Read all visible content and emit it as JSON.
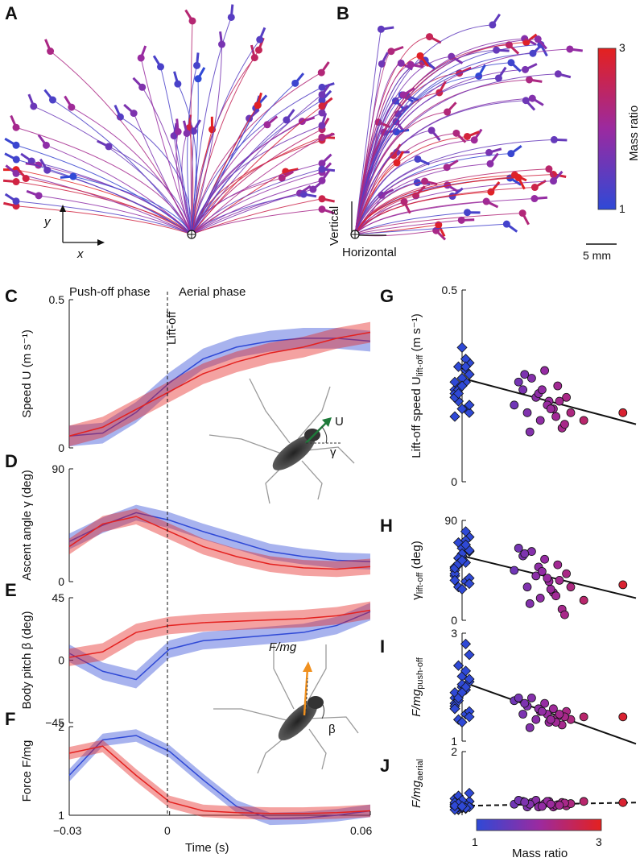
{
  "panels": {
    "A": "A",
    "B": "B",
    "C": "C",
    "D": "D",
    "E": "E",
    "F": "F",
    "G": "G",
    "H": "H",
    "I": "I",
    "J": "J"
  },
  "colorbar": {
    "label": "Mass ratio",
    "top": "3",
    "bottom": "1"
  },
  "colors": {
    "light": "#2f49d6",
    "heavy": "#e4211f",
    "mid": "#b01e6a"
  },
  "trajectory_top": {
    "axis_x": "x",
    "axis_y": "y"
  },
  "trajectory_side": {
    "axis_x": "Horizontal",
    "axis_y": "Vertical",
    "scalebar": "5 mm"
  },
  "time_series": {
    "phase_push": "Push-off phase",
    "phase_aerial": "Aerial phase",
    "liftoff": "Lift-off",
    "xlabel": "Time (s)",
    "xticks": [
      "−0.03",
      "0",
      "0.06"
    ],
    "inset1_U": "U",
    "inset1_gamma": "γ",
    "inset2_F": "F/mg",
    "inset2_beta": "β"
  },
  "chart_data": [
    {
      "id": "C",
      "type": "line",
      "ylabel": "Speed U (m s⁻¹)",
      "yticks": [
        "0",
        "0.5"
      ],
      "ylim": [
        0,
        0.5
      ],
      "x": [
        -0.03,
        -0.02,
        -0.01,
        0,
        0.01,
        0.02,
        0.03,
        0.04,
        0.05,
        0.06
      ],
      "series": [
        {
          "name": "light",
          "values": [
            0.04,
            0.05,
            0.12,
            0.22,
            0.3,
            0.34,
            0.36,
            0.37,
            0.37,
            0.36
          ]
        },
        {
          "name": "heavy",
          "values": [
            0.04,
            0.07,
            0.13,
            0.19,
            0.25,
            0.29,
            0.32,
            0.34,
            0.37,
            0.39
          ]
        }
      ]
    },
    {
      "id": "D",
      "type": "line",
      "ylabel": "Ascent angle γ (deg)",
      "yticks": [
        "0",
        "90"
      ],
      "ylim": [
        0,
        90
      ],
      "x": [
        -0.03,
        -0.02,
        -0.01,
        0,
        0.01,
        0.02,
        0.03,
        0.04,
        0.05,
        0.06
      ],
      "series": [
        {
          "name": "light",
          "values": [
            32,
            45,
            55,
            49,
            40,
            32,
            24,
            20,
            17,
            16
          ]
        },
        {
          "name": "heavy",
          "values": [
            28,
            46,
            52,
            40,
            28,
            20,
            14,
            11,
            10,
            12
          ]
        }
      ]
    },
    {
      "id": "E",
      "type": "line",
      "ylabel": "Body pitch β (deg)",
      "yticks": [
        "−45",
        "0",
        "45"
      ],
      "ylim": [
        -45,
        45
      ],
      "x": [
        -0.03,
        -0.02,
        -0.01,
        0,
        0.01,
        0.02,
        0.03,
        0.04,
        0.05,
        0.06
      ],
      "series": [
        {
          "name": "light",
          "values": [
            5,
            -8,
            -14,
            8,
            14,
            16,
            18,
            20,
            25,
            35
          ]
        },
        {
          "name": "heavy",
          "values": [
            2,
            6,
            20,
            25,
            27,
            28,
            29,
            30,
            32,
            36
          ]
        }
      ]
    },
    {
      "id": "F",
      "type": "line",
      "ylabel": "Force F/mg",
      "yticks": [
        "1",
        "2"
      ],
      "ylim": [
        1,
        2
      ],
      "x": [
        -0.03,
        -0.02,
        -0.01,
        0,
        0.01,
        0.02,
        0.03,
        0.04,
        0.05,
        0.06
      ],
      "series": [
        {
          "name": "light",
          "values": [
            1.45,
            1.85,
            1.9,
            1.72,
            1.4,
            1.1,
            0.96,
            0.97,
            1.0,
            1.05
          ]
        },
        {
          "name": "heavy",
          "values": [
            1.7,
            1.78,
            1.45,
            1.15,
            1.05,
            1.03,
            1.02,
            1.02,
            1.03,
            1.05
          ]
        }
      ]
    },
    {
      "id": "G",
      "type": "scatter",
      "ylabel": "Lift-off speed U",
      "ysub": "lift-off",
      "yunit": " (m s⁻¹)",
      "yticks": [
        "0",
        "0.5"
      ],
      "ylim": [
        0,
        0.5
      ],
      "xlim": [
        1,
        3
      ],
      "fit": {
        "style": "solid",
        "y_at_1": 0.27,
        "y_at_3": 0.15
      },
      "light": [
        0.22,
        0.25,
        0.28,
        0.3,
        0.19,
        0.24,
        0.27,
        0.31,
        0.21,
        0.26,
        0.23,
        0.35,
        0.18,
        0.25,
        0.29,
        0.22,
        0.27,
        0.2,
        0.24,
        0.32,
        0.26,
        0.19,
        0.28,
        0.23,
        0.3,
        0.17,
        0.25
      ],
      "heavy_x": [
        1.6,
        1.7,
        1.75,
        1.8,
        1.85,
        1.9,
        1.95,
        2.0,
        2.05,
        2.1,
        2.15,
        2.2,
        2.25,
        1.65,
        1.78,
        1.88,
        1.98,
        2.08,
        2.18,
        1.72,
        1.92,
        2.02,
        2.12,
        2.4,
        2.85
      ],
      "heavy_y": [
        0.2,
        0.24,
        0.18,
        0.27,
        0.22,
        0.16,
        0.29,
        0.21,
        0.19,
        0.25,
        0.14,
        0.22,
        0.18,
        0.26,
        0.13,
        0.23,
        0.2,
        0.17,
        0.15,
        0.28,
        0.24,
        0.19,
        0.21,
        0.16,
        0.18
      ]
    },
    {
      "id": "H",
      "type": "scatter",
      "ylabel": "γ",
      "ysub": "lift-off",
      "yunit": " (deg)",
      "yticks": [
        "0",
        "90"
      ],
      "ylim": [
        0,
        90
      ],
      "xlim": [
        1,
        3
      ],
      "fit": {
        "style": "solid",
        "y_at_1": 58,
        "y_at_3": 20
      },
      "light": [
        40,
        55,
        62,
        70,
        35,
        48,
        58,
        75,
        30,
        52,
        45,
        65,
        38,
        50,
        72,
        42,
        60,
        33,
        56,
        80,
        47,
        28,
        63,
        51,
        68,
        36,
        54
      ],
      "heavy_x": [
        1.6,
        1.7,
        1.75,
        1.8,
        1.85,
        1.9,
        1.95,
        2.0,
        2.05,
        2.1,
        2.15,
        2.2,
        2.25,
        1.65,
        1.78,
        1.88,
        1.98,
        2.08,
        2.18,
        1.72,
        1.92,
        2.02,
        2.12,
        2.4,
        2.85
      ],
      "heavy_y": [
        45,
        58,
        30,
        62,
        40,
        20,
        55,
        35,
        25,
        50,
        10,
        42,
        30,
        65,
        15,
        48,
        38,
        22,
        5,
        60,
        44,
        28,
        36,
        18,
        32
      ]
    },
    {
      "id": "I",
      "type": "scatter",
      "ylabel": "F/mg",
      "ysub": "push-off",
      "yunit": "",
      "yticks": [
        "1",
        "3"
      ],
      "ylim": [
        1,
        3
      ],
      "xlim": [
        1,
        3
      ],
      "fit": {
        "style": "solid",
        "y_at_1": 2.1,
        "y_at_3": 0.95
      },
      "light": [
        1.6,
        1.9,
        2.1,
        2.4,
        1.5,
        1.8,
        2.0,
        2.6,
        1.4,
        1.95,
        1.7,
        2.2,
        1.55,
        1.85,
        2.3,
        1.65,
        2.05,
        1.45,
        1.75,
        2.8,
        1.9,
        1.35,
        2.15,
        1.8,
        2.0,
        1.6,
        1.9
      ],
      "heavy_x": [
        1.6,
        1.7,
        1.75,
        1.8,
        1.85,
        1.9,
        1.95,
        2.0,
        2.05,
        2.1,
        2.15,
        2.2,
        2.25,
        1.65,
        1.78,
        1.88,
        1.98,
        2.08,
        2.18,
        1.72,
        1.92,
        2.02,
        2.12,
        2.4,
        2.85
      ],
      "heavy_y": [
        1.75,
        1.5,
        1.65,
        1.8,
        1.4,
        1.55,
        1.7,
        1.35,
        1.6,
        1.45,
        1.3,
        1.55,
        1.4,
        1.8,
        1.25,
        1.6,
        1.5,
        1.35,
        1.45,
        1.7,
        1.55,
        1.4,
        1.5,
        1.45,
        1.45
      ]
    },
    {
      "id": "J",
      "type": "scatter",
      "ylabel": "F/mg",
      "ysub": "aerial",
      "yunit": "",
      "yticks": [
        "1",
        "2"
      ],
      "ylim": [
        0.85,
        2
      ],
      "xlim": [
        1,
        3
      ],
      "fit": {
        "style": "dashed",
        "y_at_1": 1.02,
        "y_at_3": 1.08
      },
      "light": [
        1.0,
        1.05,
        1.1,
        0.95,
        1.0,
        1.15,
        0.98,
        1.02,
        1.2,
        0.97,
        1.05,
        1.0,
        1.1,
        0.96,
        1.03,
        1.08,
        0.99,
        1.25,
        1.0,
        1.04,
        0.95,
        1.12,
        1.0,
        1.06,
        0.98,
        1.02,
        1.01
      ],
      "heavy_x": [
        1.6,
        1.7,
        1.75,
        1.8,
        1.85,
        1.9,
        1.95,
        2.0,
        2.05,
        2.1,
        2.15,
        2.2,
        2.25,
        1.65,
        1.78,
        1.88,
        1.98,
        2.08,
        2.18,
        1.72,
        1.92,
        2.02,
        2.12,
        2.4,
        2.85
      ],
      "heavy_y": [
        1.05,
        1.1,
        1.0,
        1.08,
        1.12,
        1.02,
        1.06,
        1.1,
        1.0,
        1.04,
        1.08,
        1.02,
        1.06,
        1.12,
        1.05,
        1.0,
        1.1,
        1.03,
        1.07,
        1.09,
        1.01,
        1.05,
        1.03,
        1.1,
        1.08
      ]
    }
  ],
  "scatter_colorbar": {
    "label": "Mass ratio",
    "left": "1",
    "right": "3"
  }
}
